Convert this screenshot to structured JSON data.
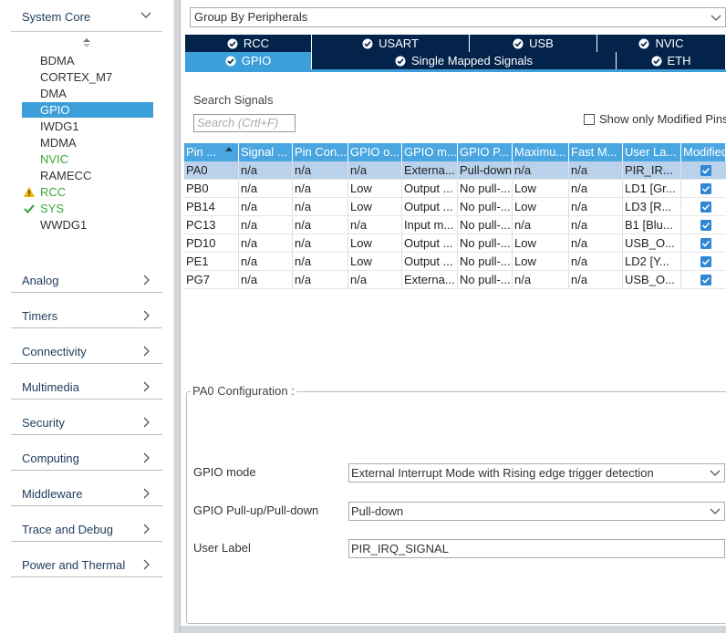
{
  "sidebar": {
    "system_core": {
      "title": "System Core",
      "selected_index": 3,
      "items": [
        {
          "name": "BDMA"
        },
        {
          "name": "CORTEX_M7"
        },
        {
          "name": "DMA"
        },
        {
          "name": "GPIO"
        },
        {
          "name": "IWDG1"
        },
        {
          "name": "MDMA"
        },
        {
          "name": "NVIC",
          "color": "#3aa83a"
        },
        {
          "name": "RAMECC"
        },
        {
          "name": "RCC",
          "icon": "warning",
          "color": "#3aa83a"
        },
        {
          "name": "SYS",
          "icon": "check",
          "color": "#3aa83a"
        },
        {
          "name": "WWDG1"
        }
      ]
    },
    "categories": [
      "Analog",
      "Timers",
      "Connectivity",
      "Multimedia",
      "Security",
      "Computing",
      "Middleware",
      "Trace and Debug",
      "Power and Thermal"
    ]
  },
  "group_by": "Group By Peripherals",
  "tabs": [
    [
      "RCC",
      "USART",
      "USB",
      "NVIC"
    ],
    [
      "GPIO",
      "Single Mapped Signals",
      "ETH"
    ]
  ],
  "selected_tab": [
    1,
    0
  ],
  "search": {
    "label": "Search Signals",
    "placeholder": "Search (Crtl+F)",
    "show_modified": "Show only Modified Pins"
  },
  "table": {
    "headers": [
      "Pin ...",
      "Signal ...",
      "Pin Con...",
      "GPIO o...",
      "GPIO m...",
      "GPIO P...",
      "Maximu...",
      "Fast M...",
      "User La...",
      "Modified"
    ],
    "selected_row": 0,
    "rows": [
      [
        "PA0",
        "n/a",
        "n/a",
        "n/a",
        "Externa...",
        "Pull-down",
        "n/a",
        "n/a",
        "PIR_IR..."
      ],
      [
        "PB0",
        "n/a",
        "n/a",
        "Low",
        "Output ...",
        "No pull-...",
        "Low",
        "n/a",
        "LD1 [Gr..."
      ],
      [
        "PB14",
        "n/a",
        "n/a",
        "Low",
        "Output ...",
        "No pull-...",
        "Low",
        "n/a",
        "LD3 [R..."
      ],
      [
        "PC13",
        "n/a",
        "n/a",
        "n/a",
        "Input m...",
        "No pull-...",
        "n/a",
        "n/a",
        "B1 [Blu..."
      ],
      [
        "PD10",
        "n/a",
        "n/a",
        "Low",
        "Output ...",
        "No pull-...",
        "Low",
        "n/a",
        "USB_O..."
      ],
      [
        "PE1",
        "n/a",
        "n/a",
        "Low",
        "Output ...",
        "No pull-...",
        "Low",
        "n/a",
        "LD2 [Y..."
      ],
      [
        "PG7",
        "n/a",
        "n/a",
        "n/a",
        "Externa...",
        "No pull-...",
        "n/a",
        "n/a",
        "USB_O..."
      ]
    ],
    "modified": [
      true,
      true,
      true,
      true,
      true,
      true,
      true
    ]
  },
  "configuration": {
    "title": "PA0 Configuration :",
    "fields": [
      {
        "label": "GPIO mode",
        "value": "External Interrupt Mode with Rising edge trigger detection",
        "kind": "select"
      },
      {
        "label": "GPIO Pull-up/Pull-down",
        "value": "Pull-down",
        "kind": "select"
      },
      {
        "label": "User Label",
        "value": "PIR_IRQ_SIGNAL",
        "kind": "input"
      }
    ]
  }
}
